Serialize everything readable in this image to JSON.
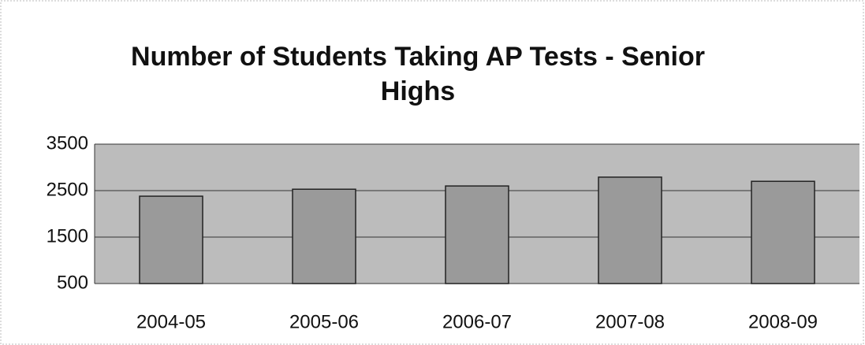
{
  "chart_data": {
    "type": "bar",
    "title": "Number of Students Taking AP Tests - Senior Highs",
    "categories": [
      "2004-05",
      "2005-06",
      "2006-07",
      "2007-08",
      "2008-09"
    ],
    "values": [
      2380,
      2530,
      2600,
      2790,
      2700
    ],
    "color": "#9a9a9a",
    "ylim": [
      500,
      3500
    ],
    "yticks": [
      500,
      1500,
      2500,
      3500
    ],
    "grid": true
  }
}
